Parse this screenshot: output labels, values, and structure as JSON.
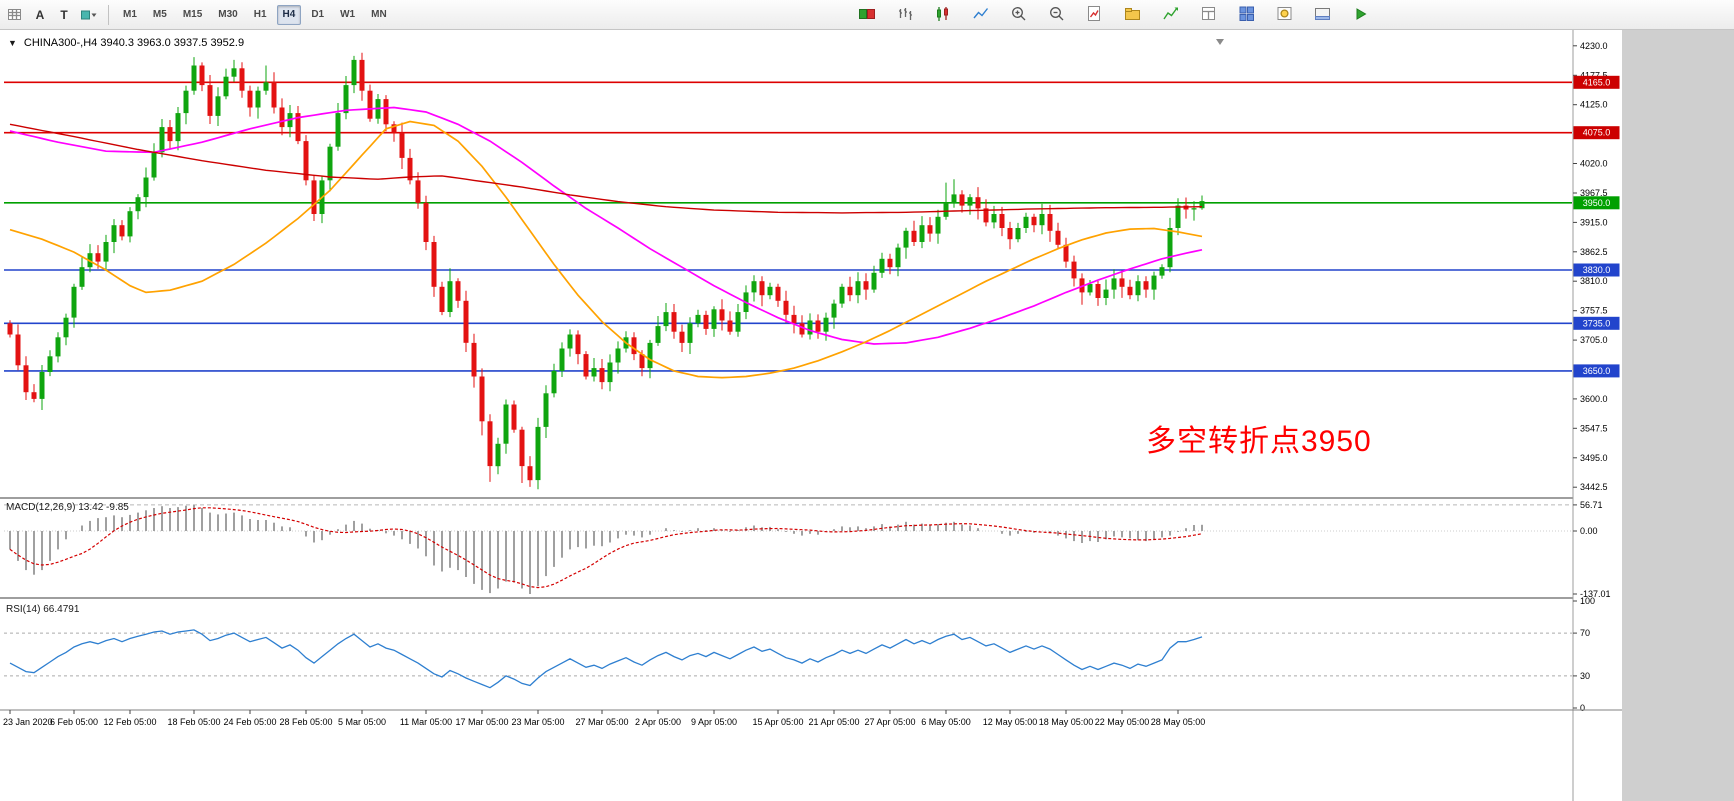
{
  "toolbar": {
    "left_icons": [
      {
        "name": "chart-grid-icon"
      },
      {
        "name": "text-a-icon",
        "glyph": "A"
      },
      {
        "name": "text-cursor-icon",
        "glyph": "T"
      },
      {
        "name": "draw-objects-icon"
      }
    ],
    "timeframes": {
      "items": [
        "M1",
        "M5",
        "M15",
        "M30",
        "H1",
        "H4",
        "D1",
        "W1",
        "MN"
      ],
      "active": "H4"
    },
    "right_icons": [
      {
        "name": "new-order-icon"
      },
      {
        "name": "charts-bar-icon"
      },
      {
        "name": "charts-candlestick-icon"
      },
      {
        "name": "charts-line-icon"
      },
      {
        "name": "zoom-in-icon"
      },
      {
        "name": "zoom-out-icon"
      },
      {
        "name": "new-chart-icon"
      },
      {
        "name": "profiles-icon"
      },
      {
        "name": "indicators-icon"
      },
      {
        "name": "templates-icon"
      },
      {
        "name": "tile-windows-icon"
      },
      {
        "name": "navigator-icon"
      },
      {
        "name": "terminal-icon"
      },
      {
        "name": "auto-trading-icon"
      }
    ]
  },
  "chart": {
    "oneclick_glyph": "▼",
    "title": "CHINA300-,H4 3940.3 3963.0 3937.5 3952.9",
    "annotation": {
      "text": "多空转折点3950",
      "color": "#ff0000"
    }
  },
  "chart_data": {
    "type": "candlestick",
    "symbol": "CHINA300-",
    "timeframe": "H4",
    "ohlc": {
      "open": 3940.3,
      "high": 3963.0,
      "low": 3937.5,
      "close": 3952.9
    },
    "ylim": [
      3425,
      4244
    ],
    "colors": {
      "up": "#0fa50f",
      "down": "#e31212",
      "ma_fast": "#ff00ff",
      "ma_mid": "#ffa200",
      "ma_slow": "#cc0000",
      "macd_hist": "#a0a0a0",
      "macd_signal": "#d40000",
      "rsi_line": "#2e7fd0",
      "hline_red": "#dd0000",
      "hline_green": "#00a000",
      "hline_blue": "#2244cc"
    },
    "price_ticks": [
      4230.0,
      4177.5,
      4125.0,
      4020.0,
      3967.5,
      3915.0,
      3862.5,
      3810.0,
      3757.5,
      3705.0,
      3600.0,
      3547.5,
      3495.0,
      3442.5
    ],
    "price_badges": [
      {
        "label": "4165.0",
        "price": 4165.0,
        "bg": "#cc0000",
        "fg": "#ffffff"
      },
      {
        "label": "4075.0",
        "price": 4075.0,
        "bg": "#cc0000",
        "fg": "#ffffff"
      },
      {
        "label": "3950.0",
        "price": 3950.0,
        "bg": "#00a000",
        "fg": "#ffffff"
      },
      {
        "label": "3830.0",
        "price": 3830.0,
        "bg": "#2244cc",
        "fg": "#ffffff"
      },
      {
        "label": "3735.0",
        "price": 3735.0,
        "bg": "#2244cc",
        "fg": "#ffffff"
      },
      {
        "label": "3650.0",
        "price": 3650.0,
        "bg": "#2244cc",
        "fg": "#ffffff"
      }
    ],
    "hlines": [
      {
        "price": 4165.0,
        "color": "#dd0000"
      },
      {
        "price": 4075.0,
        "color": "#dd0000"
      },
      {
        "price": 3950.0,
        "color": "#00a000"
      },
      {
        "price": 3830.0,
        "color": "#2244cc"
      },
      {
        "price": 3735.0,
        "color": "#2244cc"
      },
      {
        "price": 3650.0,
        "color": "#2244cc"
      }
    ],
    "x_labels": [
      {
        "t": "23 Jan 2020",
        "i": 0
      },
      {
        "t": "6 Feb 05:00",
        "i": 8
      },
      {
        "t": "12 Feb 05:00",
        "i": 15
      },
      {
        "t": "18 Feb 05:00",
        "i": 23
      },
      {
        "t": "24 Feb 05:00",
        "i": 30
      },
      {
        "t": "28 Feb 05:00",
        "i": 37
      },
      {
        "t": "5 Mar 05:00",
        "i": 44
      },
      {
        "t": "11 Mar 05:00",
        "i": 52
      },
      {
        "t": "17 Mar 05:00",
        "i": 59
      },
      {
        "t": "23 Mar 05:00",
        "i": 66
      },
      {
        "t": "27 Mar 05:00",
        "i": 74
      },
      {
        "t": "2 Apr 05:00",
        "i": 81
      },
      {
        "t": "9 Apr 05:00",
        "i": 88
      },
      {
        "t": "15 Apr 05:00",
        "i": 96
      },
      {
        "t": "21 Apr 05:00",
        "i": 103
      },
      {
        "t": "27 Apr 05:00",
        "i": 110
      },
      {
        "t": "6 May 05:00",
        "i": 117
      },
      {
        "t": "12 May 05:00",
        "i": 125
      },
      {
        "t": "18 May 05:00",
        "i": 132
      },
      {
        "t": "22 May 05:00",
        "i": 139
      },
      {
        "t": "28 May 05:00",
        "i": 146
      }
    ],
    "candles": {
      "first_open": 3735,
      "closes": [
        3715,
        3660,
        3612,
        3600,
        3648,
        3676,
        3710,
        3745,
        3800,
        3835,
        3860,
        3845,
        3880,
        3910,
        3890,
        3935,
        3960,
        3995,
        4040,
        4085,
        4060,
        4110,
        4150,
        4195,
        4160,
        4105,
        4140,
        4175,
        4190,
        4150,
        4120,
        4150,
        4165,
        4120,
        4085,
        4110,
        4060,
        3990,
        3930,
        3990,
        4050,
        4110,
        4160,
        4205,
        4150,
        4100,
        4135,
        4090,
        4075,
        4030,
        3990,
        3950,
        3880,
        3800,
        3755,
        3810,
        3775,
        3700,
        3640,
        3560,
        3480,
        3520,
        3590,
        3545,
        3480,
        3455,
        3550,
        3610,
        3650,
        3690,
        3715,
        3680,
        3640,
        3655,
        3630,
        3665,
        3690,
        3710,
        3680,
        3655,
        3700,
        3730,
        3755,
        3720,
        3700,
        3735,
        3750,
        3725,
        3760,
        3740,
        3720,
        3755,
        3790,
        3810,
        3785,
        3800,
        3775,
        3750,
        3735,
        3715,
        3740,
        3720,
        3745,
        3770,
        3800,
        3785,
        3810,
        3795,
        3825,
        3850,
        3835,
        3870,
        3900,
        3880,
        3910,
        3895,
        3925,
        3950,
        3965,
        3945,
        3960,
        3940,
        3915,
        3930,
        3905,
        3885,
        3905,
        3925,
        3910,
        3930,
        3900,
        3875,
        3845,
        3815,
        3790,
        3805,
        3780,
        3795,
        3815,
        3800,
        3785,
        3810,
        3795,
        3820,
        3835,
        3905,
        3945,
        3938,
        3940.3,
        3952.9
      ],
      "high_overrides": {
        "23": 4210,
        "28": 4205,
        "32": 4195,
        "43": 4212,
        "55": 3833,
        "117": 3986,
        "118": 3992,
        "146": 3958,
        "149": 3963
      },
      "low_overrides": {
        "2": 3598,
        "3": 3594,
        "59": 3535,
        "60": 3452,
        "64": 3450,
        "65": 3443,
        "134": 3768,
        "136": 3766,
        "149": 3937.5
      }
    },
    "moving_averages": [
      {
        "name": "ma-fast",
        "color": "#ff00ff",
        "points": [
          [
            0,
            4078
          ],
          [
            6,
            4058
          ],
          [
            12,
            4042
          ],
          [
            18,
            4040
          ],
          [
            24,
            4058
          ],
          [
            30,
            4082
          ],
          [
            36,
            4102
          ],
          [
            42,
            4115
          ],
          [
            48,
            4120
          ],
          [
            52,
            4112
          ],
          [
            56,
            4090
          ],
          [
            60,
            4060
          ],
          [
            64,
            4022
          ],
          [
            68,
            3980
          ],
          [
            72,
            3940
          ],
          [
            76,
            3905
          ],
          [
            80,
            3868
          ],
          [
            84,
            3835
          ],
          [
            88,
            3802
          ],
          [
            92,
            3772
          ],
          [
            96,
            3745
          ],
          [
            100,
            3722
          ],
          [
            104,
            3706
          ],
          [
            108,
            3698
          ],
          [
            112,
            3700
          ],
          [
            116,
            3710
          ],
          [
            120,
            3726
          ],
          [
            124,
            3745
          ],
          [
            128,
            3766
          ],
          [
            132,
            3790
          ],
          [
            136,
            3812
          ],
          [
            140,
            3832
          ],
          [
            144,
            3850
          ],
          [
            147,
            3860
          ],
          [
            149,
            3866
          ]
        ]
      },
      {
        "name": "ma-mid",
        "color": "#ffa200",
        "points": [
          [
            0,
            3902
          ],
          [
            4,
            3885
          ],
          [
            8,
            3862
          ],
          [
            12,
            3830
          ],
          [
            15,
            3802
          ],
          [
            17,
            3790
          ],
          [
            20,
            3794
          ],
          [
            24,
            3810
          ],
          [
            28,
            3840
          ],
          [
            32,
            3878
          ],
          [
            36,
            3922
          ],
          [
            40,
            3972
          ],
          [
            44,
            4035
          ],
          [
            47,
            4082
          ],
          [
            50,
            4095
          ],
          [
            53,
            4088
          ],
          [
            56,
            4060
          ],
          [
            59,
            4015
          ],
          [
            62,
            3960
          ],
          [
            65,
            3900
          ],
          [
            68,
            3840
          ],
          [
            71,
            3785
          ],
          [
            74,
            3738
          ],
          [
            77,
            3700
          ],
          [
            80,
            3670
          ],
          [
            83,
            3650
          ],
          [
            86,
            3640
          ],
          [
            89,
            3638
          ],
          [
            92,
            3640
          ],
          [
            95,
            3646
          ],
          [
            98,
            3655
          ],
          [
            101,
            3668
          ],
          [
            104,
            3684
          ],
          [
            107,
            3702
          ],
          [
            110,
            3722
          ],
          [
            113,
            3744
          ],
          [
            116,
            3766
          ],
          [
            119,
            3788
          ],
          [
            122,
            3810
          ],
          [
            125,
            3830
          ],
          [
            128,
            3850
          ],
          [
            131,
            3868
          ],
          [
            134,
            3884
          ],
          [
            137,
            3896
          ],
          [
            140,
            3903
          ],
          [
            143,
            3904
          ],
          [
            146,
            3898
          ],
          [
            149,
            3890
          ]
        ]
      },
      {
        "name": "ma-slow",
        "color": "#cc0000",
        "points": [
          [
            0,
            4090
          ],
          [
            8,
            4068
          ],
          [
            16,
            4045
          ],
          [
            24,
            4025
          ],
          [
            32,
            4008
          ],
          [
            40,
            3996
          ],
          [
            46,
            3992
          ],
          [
            50,
            3996
          ],
          [
            54,
            3998
          ],
          [
            58,
            3990
          ],
          [
            64,
            3978
          ],
          [
            70,
            3964
          ],
          [
            76,
            3952
          ],
          [
            82,
            3943
          ],
          [
            88,
            3937
          ],
          [
            96,
            3933
          ],
          [
            104,
            3932
          ],
          [
            112,
            3933
          ],
          [
            120,
            3936
          ],
          [
            128,
            3939
          ],
          [
            136,
            3941
          ],
          [
            144,
            3942
          ],
          [
            149,
            3943
          ]
        ]
      }
    ],
    "macd": {
      "label": "MACD(12,26,9) 13.42 -9.85",
      "axis_labels": [
        "56.71",
        "0.00",
        "-137.01"
      ],
      "axis_values": [
        56.71,
        0,
        -137.01
      ],
      "level": 56.71,
      "ylim": [
        -150,
        60
      ],
      "values": [
        -40,
        -65,
        -85,
        -95,
        -85,
        -65,
        -40,
        -18,
        0,
        12,
        22,
        28,
        30,
        34,
        30,
        35,
        40,
        45,
        50,
        54,
        50,
        52,
        55,
        57,
        50,
        40,
        36,
        38,
        40,
        34,
        26,
        24,
        24,
        18,
        10,
        8,
        0,
        -12,
        -25,
        -20,
        -8,
        4,
        14,
        22,
        16,
        5,
        2,
        -5,
        -10,
        -18,
        -28,
        -38,
        -55,
        -75,
        -88,
        -80,
        -85,
        -100,
        -115,
        -128,
        -135,
        -125,
        -110,
        -112,
        -125,
        -137,
        -120,
        -98,
        -78,
        -58,
        -40,
        -35,
        -38,
        -32,
        -33,
        -25,
        -16,
        -8,
        -10,
        -14,
        -8,
        0,
        6,
        2,
        -2,
        2,
        6,
        2,
        6,
        2,
        -2,
        2,
        8,
        12,
        8,
        9,
        4,
        -2,
        -6,
        -10,
        -6,
        -8,
        -2,
        4,
        10,
        8,
        10,
        6,
        10,
        15,
        10,
        14,
        20,
        14,
        16,
        12,
        15,
        18,
        20,
        14,
        12,
        6,
        0,
        0,
        -6,
        -10,
        -6,
        -2,
        -4,
        0,
        -4,
        -10,
        -16,
        -22,
        -26,
        -22,
        -24,
        -18,
        -12,
        -14,
        -16,
        -20,
        -22,
        -18,
        -14,
        -10,
        -2,
        6,
        13,
        13.42
      ]
    },
    "rsi": {
      "label": "RSI(14) 66.4791",
      "axis_labels": [
        "100",
        "70",
        "30",
        "0"
      ],
      "axis_values": [
        100,
        70,
        30,
        0
      ],
      "levels": [
        70,
        30
      ],
      "ylim": [
        0,
        100
      ],
      "values": [
        42,
        38,
        34,
        33,
        38,
        43,
        48,
        52,
        57,
        60,
        62,
        60,
        63,
        65,
        62,
        65,
        67,
        69,
        71,
        72,
        69,
        71,
        72,
        73,
        69,
        63,
        65,
        68,
        70,
        66,
        62,
        64,
        66,
        61,
        56,
        59,
        54,
        47,
        42,
        48,
        54,
        60,
        65,
        69,
        63,
        57,
        60,
        56,
        54,
        50,
        46,
        42,
        37,
        32,
        29,
        35,
        32,
        28,
        25,
        22,
        19,
        24,
        30,
        27,
        23,
        21,
        28,
        34,
        38,
        42,
        46,
        42,
        38,
        40,
        37,
        41,
        44,
        47,
        43,
        40,
        45,
        49,
        52,
        48,
        45,
        49,
        51,
        48,
        52,
        49,
        46,
        50,
        54,
        57,
        53,
        55,
        51,
        47,
        45,
        42,
        46,
        43,
        47,
        50,
        54,
        51,
        54,
        51,
        55,
        59,
        56,
        60,
        64,
        60,
        63,
        60,
        64,
        67,
        69,
        64,
        66,
        62,
        58,
        60,
        56,
        52,
        55,
        58,
        55,
        58,
        55,
        50,
        45,
        40,
        36,
        39,
        36,
        39,
        42,
        40,
        37,
        41,
        39,
        42,
        45,
        56,
        62,
        62,
        64,
        66.48
      ]
    }
  }
}
